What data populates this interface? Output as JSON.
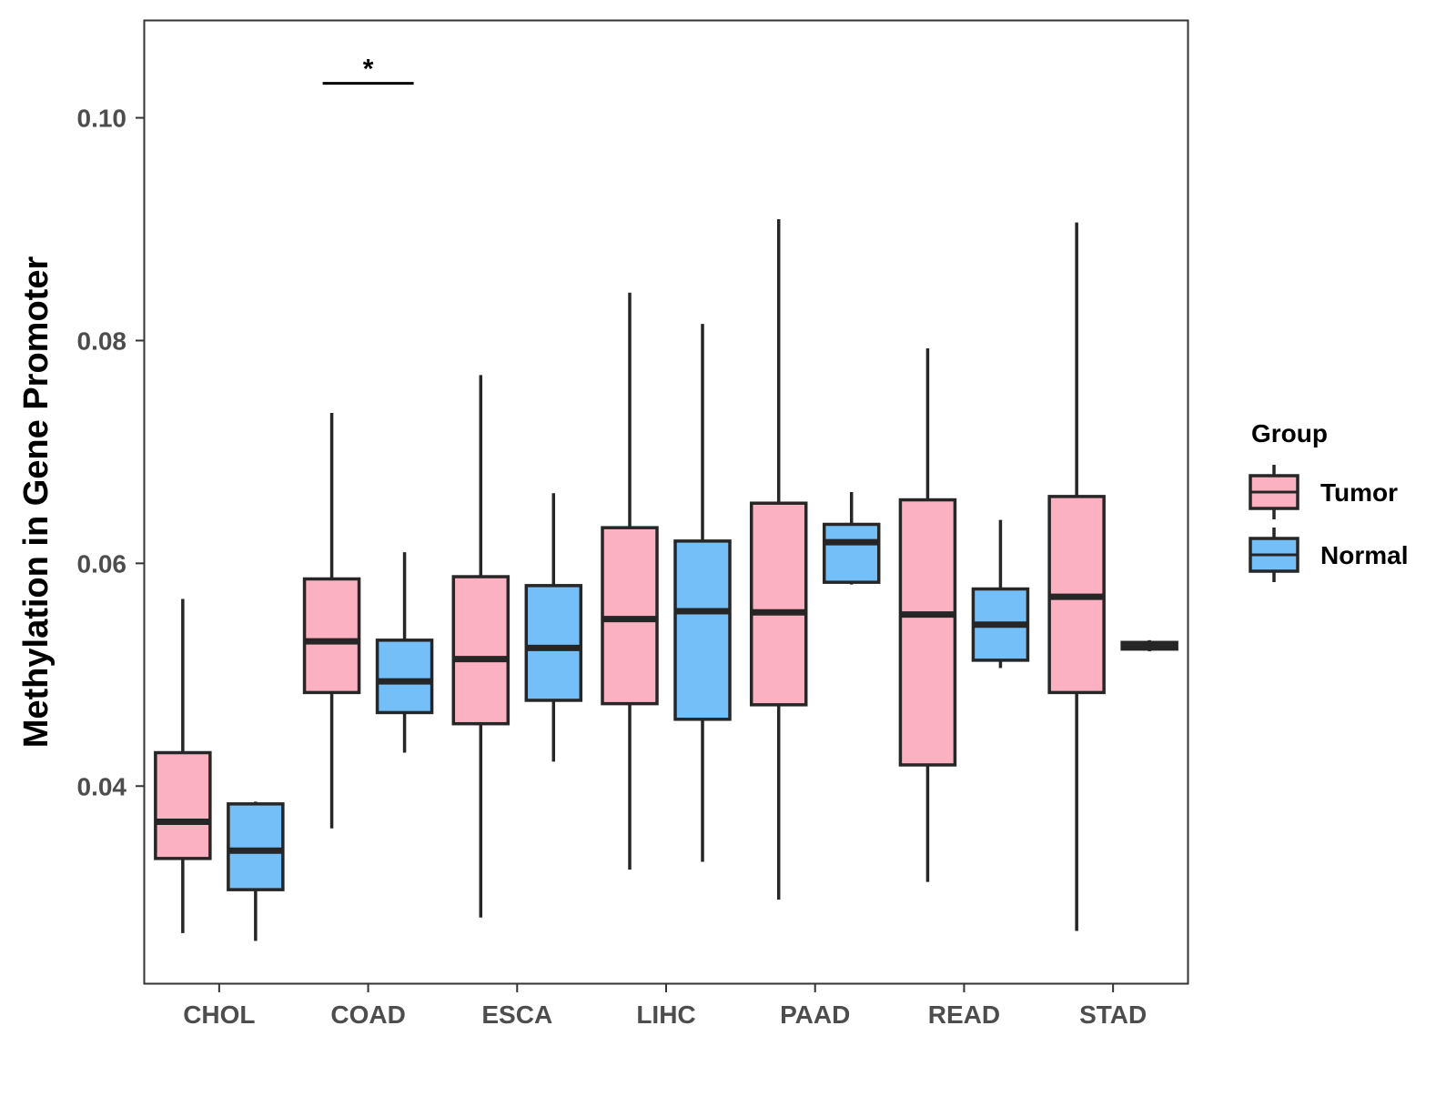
{
  "chart_data": {
    "type": "boxplot",
    "title": "",
    "xlabel": "",
    "ylabel": "Methylation in Gene Promoter",
    "ylim": [
      0.0223,
      0.1087
    ],
    "yticks": [
      0.04,
      0.06,
      0.08,
      0.1
    ],
    "ytick_labels": [
      "0.04",
      "0.06",
      "0.08",
      "0.10"
    ],
    "grid": false,
    "categories": [
      "CHOL",
      "COAD",
      "ESCA",
      "LIHC",
      "PAAD",
      "READ",
      "STAD"
    ],
    "legend": {
      "title": "Group",
      "position": "right",
      "entries": [
        {
          "key": "Tumor",
          "label": "Tumor",
          "color": "#FBB1C2"
        },
        {
          "key": "Normal",
          "label": "Normal",
          "color": "#75BFF8"
        }
      ]
    },
    "series": [
      {
        "name": "Tumor",
        "color": "#FBB1C2",
        "boxes": [
          {
            "category": "CHOL",
            "min": 0.0268,
            "q1": 0.0335,
            "median": 0.0368,
            "q3": 0.043,
            "max": 0.0568
          },
          {
            "category": "COAD",
            "min": 0.0362,
            "q1": 0.0484,
            "median": 0.053,
            "q3": 0.0586,
            "max": 0.0735
          },
          {
            "category": "ESCA",
            "min": 0.0282,
            "q1": 0.0456,
            "median": 0.0514,
            "q3": 0.0588,
            "max": 0.0769
          },
          {
            "category": "LIHC",
            "min": 0.0325,
            "q1": 0.0474,
            "median": 0.055,
            "q3": 0.0632,
            "max": 0.0843
          },
          {
            "category": "PAAD",
            "min": 0.0298,
            "q1": 0.0473,
            "median": 0.0556,
            "q3": 0.0654,
            "max": 0.0909
          },
          {
            "category": "READ",
            "min": 0.0314,
            "q1": 0.0419,
            "median": 0.0554,
            "q3": 0.0657,
            "max": 0.0793
          },
          {
            "category": "STAD",
            "min": 0.027,
            "q1": 0.0484,
            "median": 0.057,
            "q3": 0.066,
            "max": 0.0906
          }
        ]
      },
      {
        "name": "Normal",
        "color": "#75BFF8",
        "boxes": [
          {
            "category": "CHOL",
            "min": 0.0261,
            "q1": 0.0307,
            "median": 0.0342,
            "q3": 0.0384,
            "max": 0.0386
          },
          {
            "category": "COAD",
            "min": 0.043,
            "q1": 0.0466,
            "median": 0.0494,
            "q3": 0.0531,
            "max": 0.061
          },
          {
            "category": "ESCA",
            "min": 0.0422,
            "q1": 0.0477,
            "median": 0.0524,
            "q3": 0.058,
            "max": 0.0663
          },
          {
            "category": "LIHC",
            "min": 0.0332,
            "q1": 0.046,
            "median": 0.0557,
            "q3": 0.062,
            "max": 0.0815
          },
          {
            "category": "PAAD",
            "min": 0.0581,
            "q1": 0.0583,
            "median": 0.0619,
            "q3": 0.0635,
            "max": 0.0664
          },
          {
            "category": "READ",
            "min": 0.0506,
            "q1": 0.0513,
            "median": 0.0545,
            "q3": 0.0577,
            "max": 0.0639
          },
          {
            "category": "STAD",
            "min": 0.0521,
            "q1": 0.0523,
            "median": 0.0527,
            "q3": 0.0529,
            "max": 0.0531
          }
        ]
      }
    ],
    "annotations": [
      {
        "category": "COAD",
        "label": "*",
        "y": 0.1031
      }
    ]
  }
}
